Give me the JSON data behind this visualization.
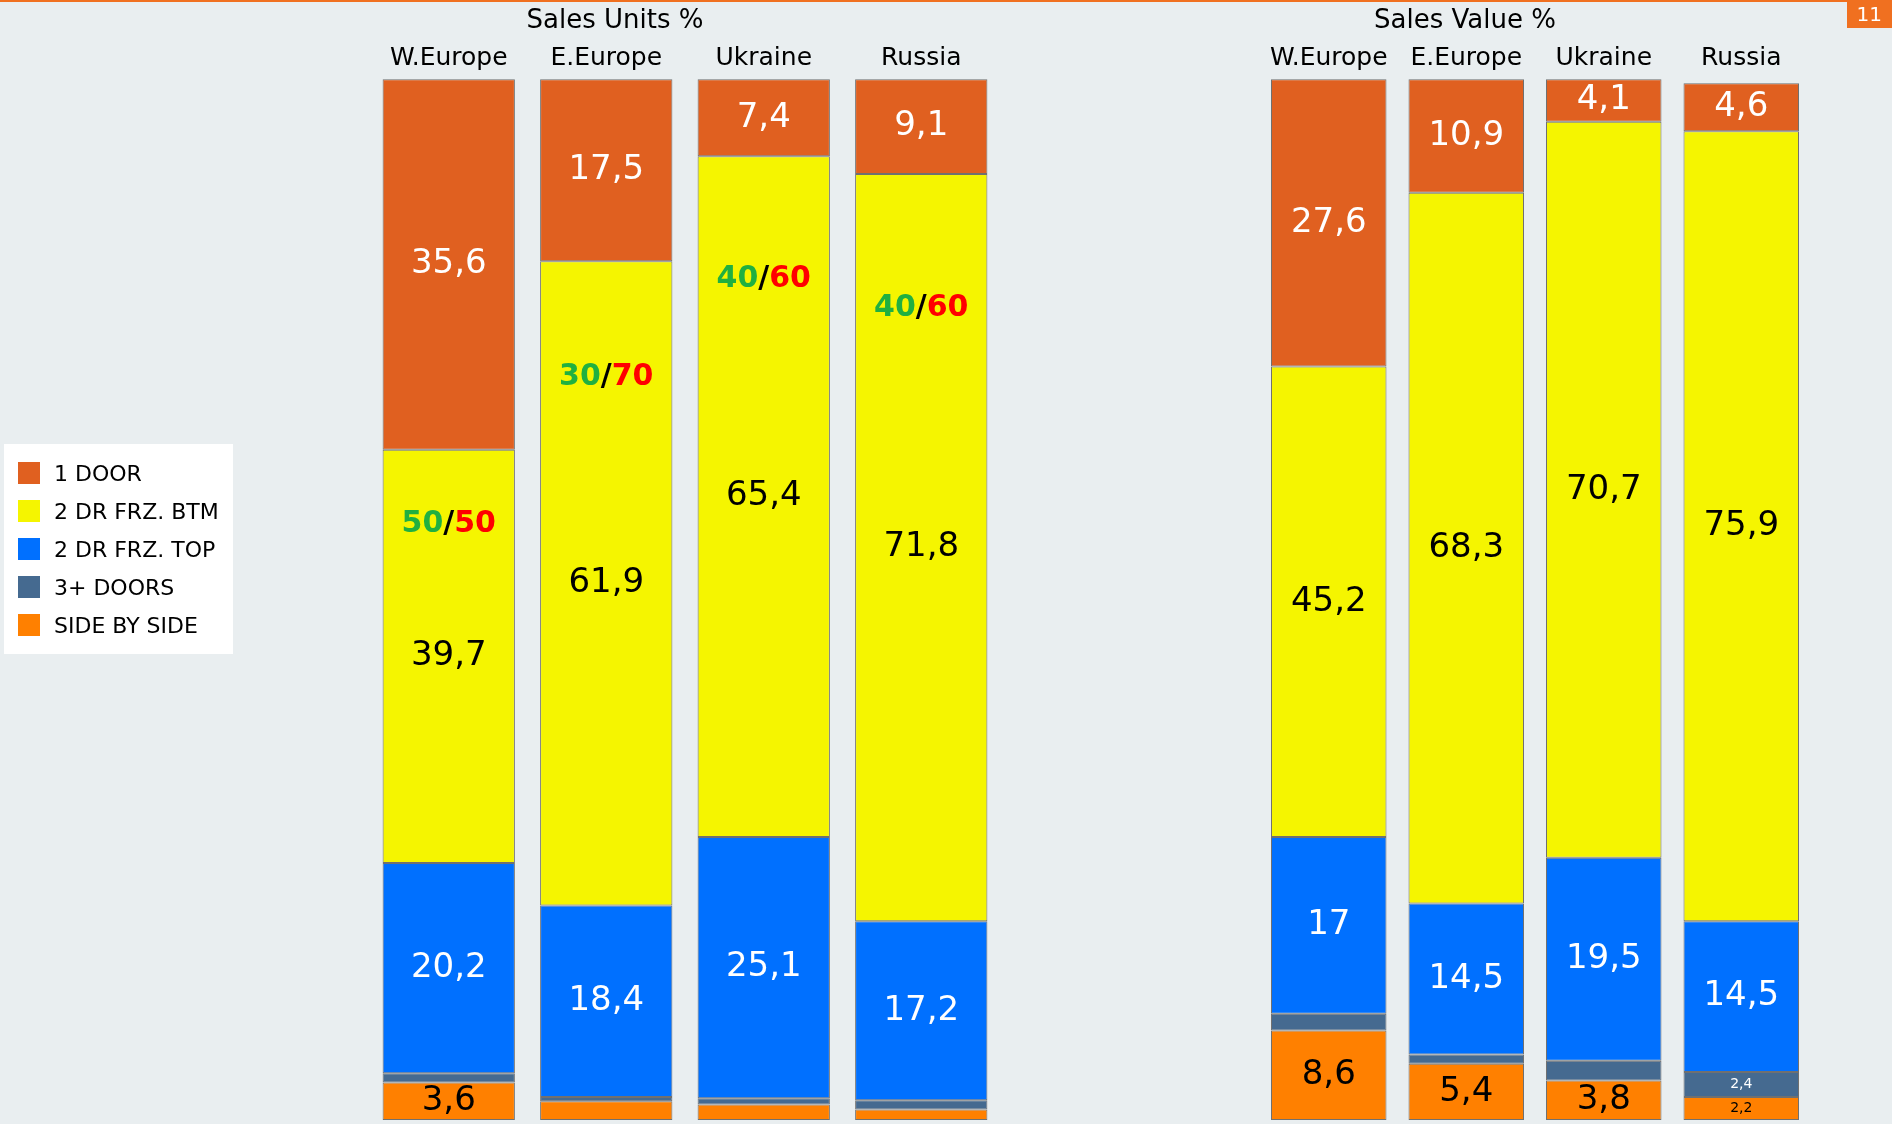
{
  "chart_data": [
    {
      "type": "bar",
      "title": "Sales Units %",
      "categories": [
        "W.Europe",
        "E.Europe",
        "Ukraine",
        "Russia"
      ],
      "stacked": true,
      "ylim": [
        0,
        100
      ],
      "tick_labels": "x",
      "legend": "left",
      "grid": false,
      "series": [
        {
          "name": "SIDE BY SIDE",
          "color": "#ff8000",
          "values": [
            3.6,
            1.8,
            1.5,
            1.0
          ],
          "value_labels": [
            "3,6",
            null,
            null,
            null
          ]
        },
        {
          "name": "3+ DOORS",
          "color": "#456a90",
          "values": [
            0.9,
            0.4,
            0.6,
            0.9
          ],
          "value_labels": [
            null,
            null,
            null,
            null
          ]
        },
        {
          "name": "2 DR FRZ. TOP",
          "color": "#0070ff",
          "values": [
            20.2,
            18.4,
            25.1,
            17.2
          ],
          "value_labels": [
            "20,2",
            "18,4",
            "25,1",
            "17,2"
          ]
        },
        {
          "name": "2 DR FRZ. BTM",
          "color": "#f5f500",
          "values": [
            39.7,
            61.9,
            65.4,
            71.8
          ],
          "value_labels": [
            "39,7",
            "61,9",
            "65,4",
            "71,8"
          ]
        },
        {
          "name": "1 DOOR",
          "color": "#e06020",
          "values": [
            35.6,
            17.5,
            7.4,
            9.1
          ],
          "value_labels": [
            "35,6",
            "17,5",
            "7,4",
            "9,1"
          ]
        }
      ],
      "annotations": [
        "50/50",
        "30/70",
        "40/60",
        "40/60",
        "11"
      ]
    },
    {
      "type": "bar",
      "title": "Sales Value %",
      "categories": [
        "W.Europe",
        "E.Europe",
        "Ukraine",
        "Russia"
      ],
      "stacked": true,
      "ylim": [
        0,
        100
      ],
      "tick_labels": "x",
      "grid": false,
      "series": [
        {
          "color": "#ff8000",
          "values": [
            8.6,
            5.4,
            3.8,
            2.2
          ],
          "value_labels": [
            "8,6",
            "5,4",
            "3,8",
            "2,2"
          ]
        },
        {
          "color": "#456a90",
          "values": [
            1.6,
            0.9,
            1.9,
            2.4
          ],
          "value_labels": [
            null,
            null,
            null,
            "2,4"
          ]
        },
        {
          "color": "#0070ff",
          "values": [
            17,
            14.5,
            19.5,
            14.5
          ],
          "value_labels": [
            "17",
            "14,5",
            "19,5",
            "14,5"
          ]
        },
        {
          "color": "#f5f500",
          "values": [
            45.2,
            68.3,
            70.7,
            75.9
          ],
          "value_labels": [
            "45,2",
            "68,3",
            "70,7",
            "75,9"
          ]
        },
        {
          "color": "#e06020",
          "values": [
            27.6,
            10.9,
            4.1,
            4.6
          ],
          "value_labels": [
            "27,6",
            "10,9",
            "4,1",
            "4,6"
          ]
        }
      ]
    }
  ]
}
